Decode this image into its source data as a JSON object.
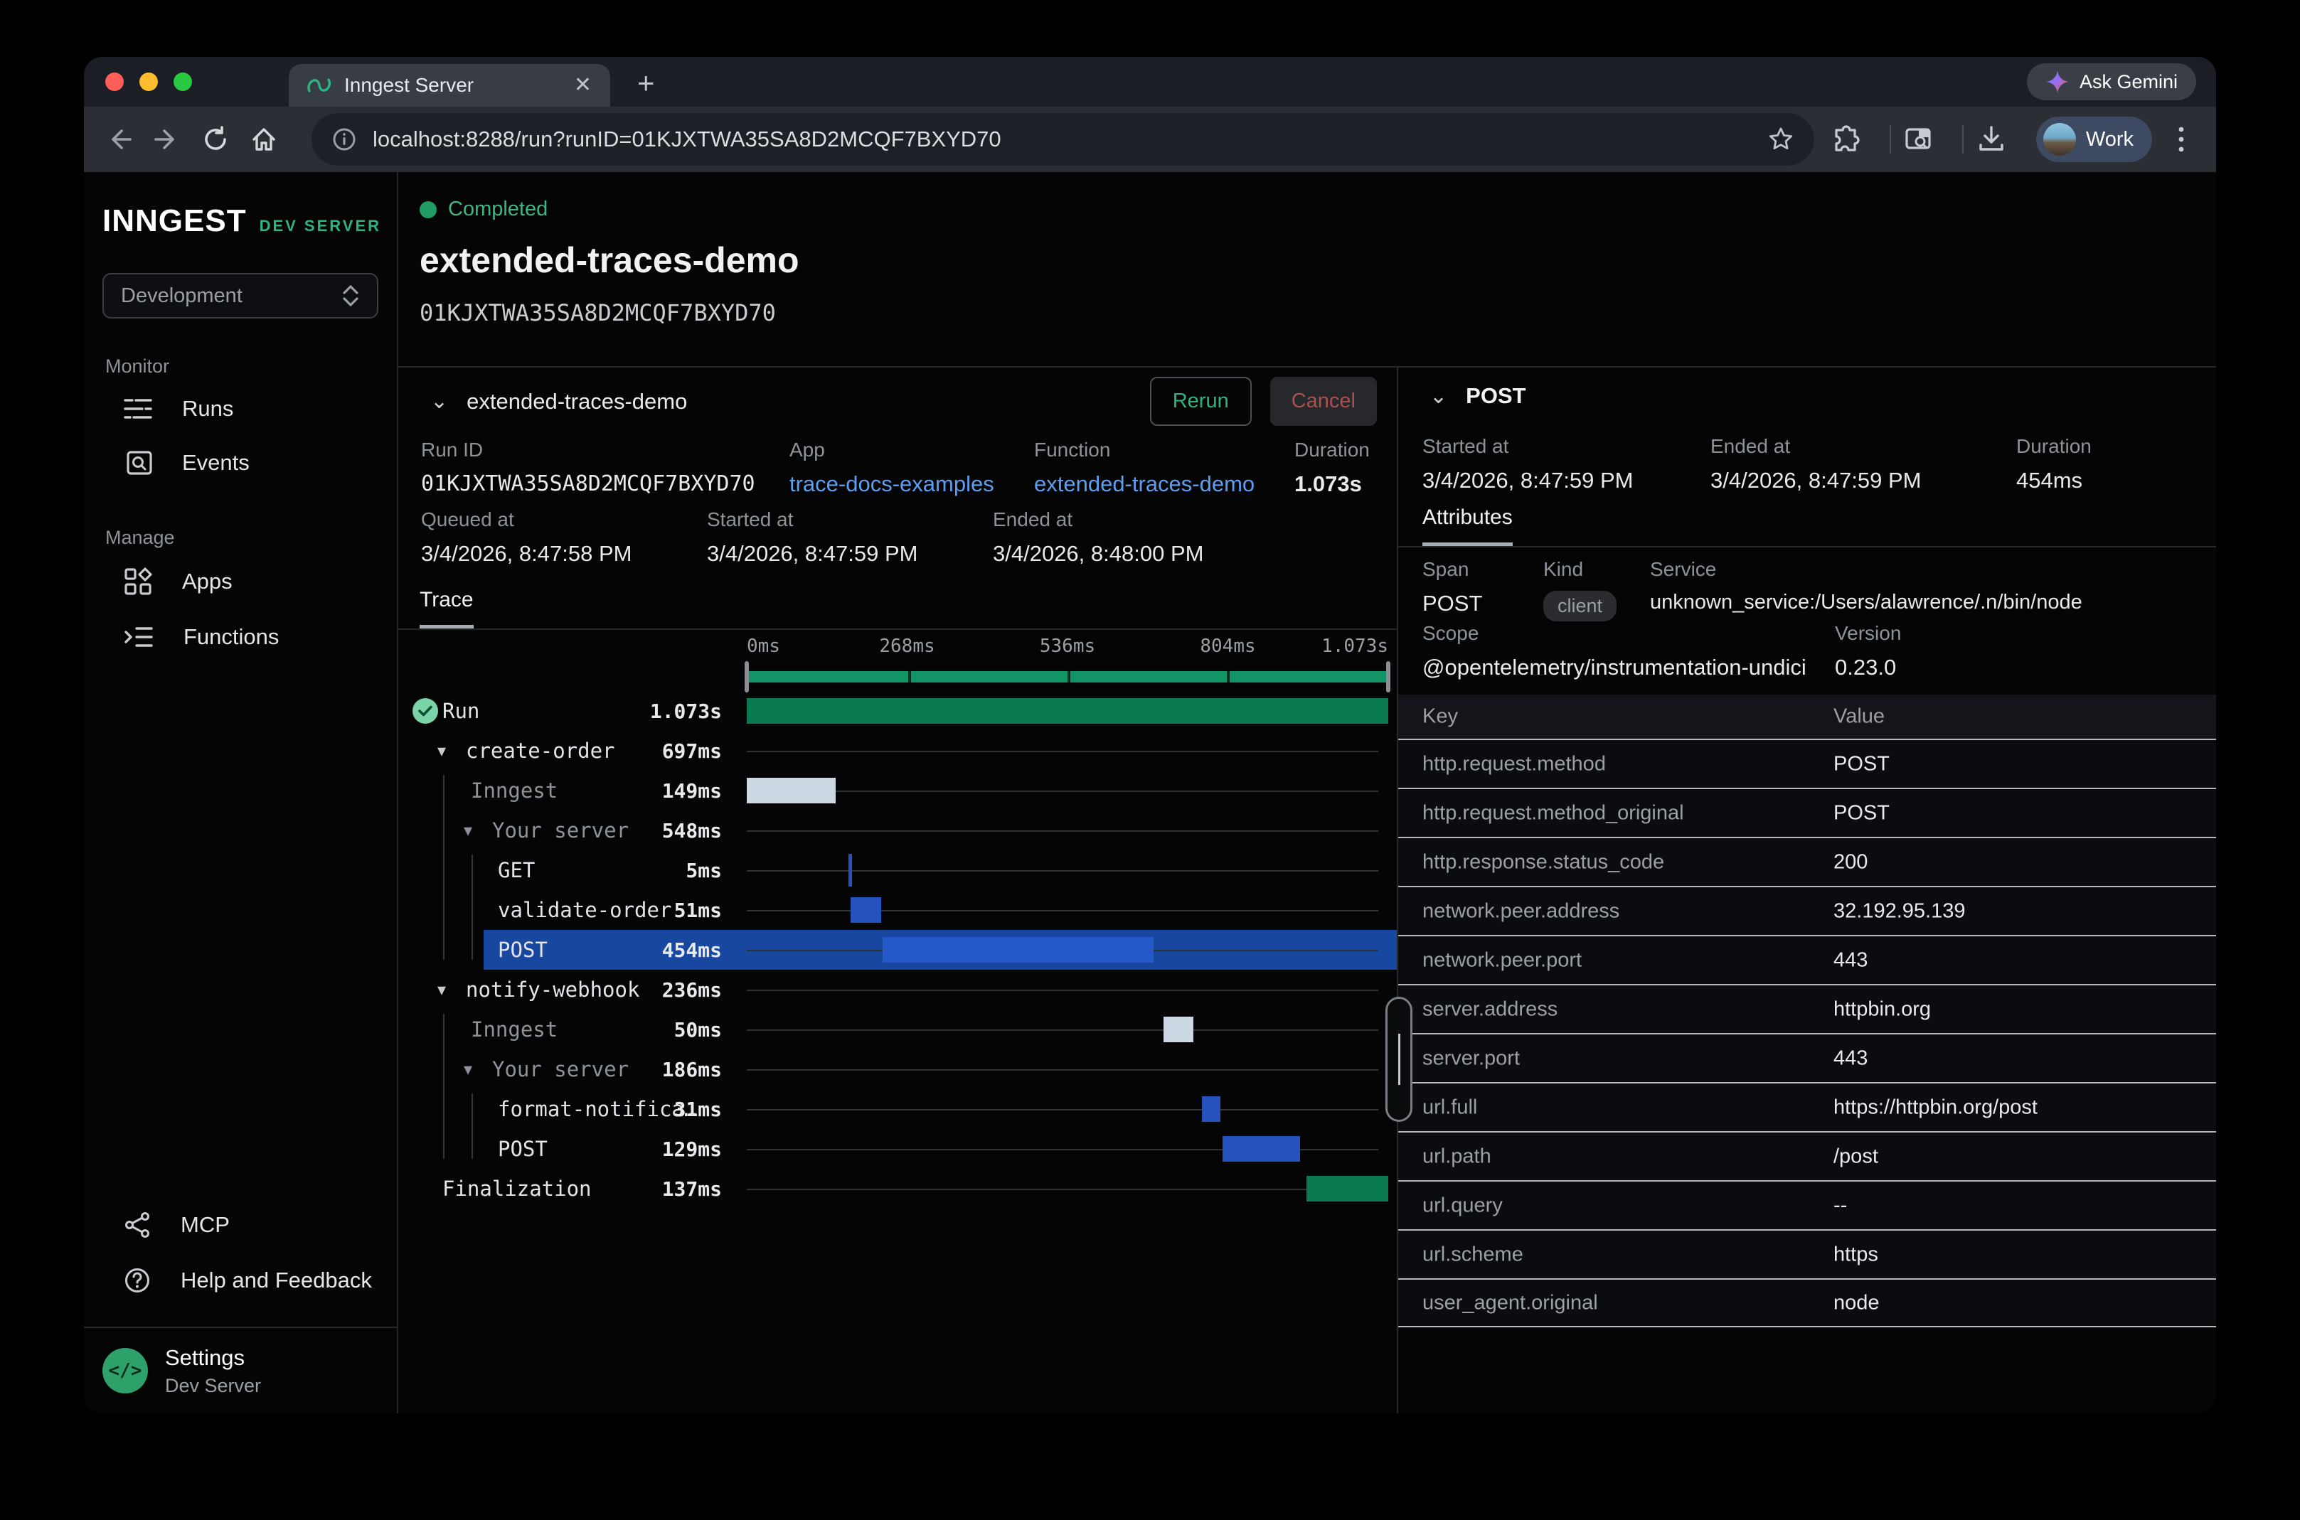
{
  "browser": {
    "tab_title": "Inngest Server",
    "url": "localhost:8288/run?runID=01KJXTWA35SA8D2MCQF7BXYD70",
    "ask_gemini_label": "Ask Gemini",
    "profile_label": "Work"
  },
  "sidebar": {
    "logo": "INNGEST",
    "logo_badge": "DEV SERVER",
    "env_select_value": "Development",
    "sections": [
      {
        "label": "Monitor",
        "items": [
          {
            "icon": "runs-icon",
            "label": "Runs"
          },
          {
            "icon": "events-icon",
            "label": "Events"
          }
        ]
      },
      {
        "label": "Manage",
        "items": [
          {
            "icon": "apps-icon",
            "label": "Apps"
          },
          {
            "icon": "functions-icon",
            "label": "Functions"
          }
        ]
      }
    ],
    "footer_items": [
      {
        "icon": "mcp-icon",
        "label": "MCP"
      },
      {
        "icon": "help-icon",
        "label": "Help and Feedback"
      }
    ],
    "settings": {
      "title": "Settings",
      "subtitle": "Dev Server"
    }
  },
  "header": {
    "status": "Completed",
    "title": "extended-traces-demo",
    "run_id": "01KJXTWA35SA8D2MCQF7BXYD70"
  },
  "run_card": {
    "name": "extended-traces-demo",
    "rerun_label": "Rerun",
    "cancel_label": "Cancel",
    "fields_row1": [
      {
        "label": "Run ID",
        "value": "01KJXTWA35SA8D2MCQF7BXYD70",
        "style": "mono"
      },
      {
        "label": "App",
        "value": "trace-docs-examples",
        "style": "link"
      },
      {
        "label": "Function",
        "value": "extended-traces-demo",
        "style": "link"
      },
      {
        "label": "Duration",
        "value": "1.073s",
        "style": "bold"
      }
    ],
    "fields_row2": [
      {
        "label": "Queued at",
        "value": "3/4/2026, 8:47:58 PM"
      },
      {
        "label": "Started at",
        "value": "3/4/2026, 8:47:59 PM"
      },
      {
        "label": "Ended at",
        "value": "3/4/2026, 8:48:00 PM"
      }
    ],
    "tab": "Trace"
  },
  "trace": {
    "total_ms": 1073,
    "axis": [
      "0ms",
      "268ms",
      "536ms",
      "804ms",
      "1.073s"
    ],
    "rows": [
      {
        "name": "Run",
        "duration": "1.073s",
        "indent": 62,
        "icon": "check-circle",
        "chevron": false,
        "grey": false,
        "selected": false,
        "bar": {
          "start": 0,
          "end": 1073,
          "color": "green"
        }
      },
      {
        "name": "create-order",
        "duration": "697ms",
        "indent": 95,
        "chevron": true,
        "grey": false,
        "selected": false,
        "bar": null
      },
      {
        "name": "Inngest",
        "duration": "149ms",
        "indent": 102,
        "chevron": false,
        "grey": true,
        "selected": false,
        "bar": {
          "start": 0,
          "end": 149,
          "color": "light"
        }
      },
      {
        "name": "Your server",
        "duration": "548ms",
        "indent": 132,
        "chevron": true,
        "grey": true,
        "selected": false,
        "bar": null
      },
      {
        "name": "GET",
        "duration": "5ms",
        "indent": 140,
        "chevron": false,
        "grey": false,
        "selected": false,
        "tick": true,
        "bar": {
          "start": 170,
          "end": 176,
          "color": "blue"
        }
      },
      {
        "name": "validate-order",
        "duration": "51ms",
        "indent": 140,
        "chevron": false,
        "grey": false,
        "selected": false,
        "bar": {
          "start": 174,
          "end": 225,
          "color": "blue"
        }
      },
      {
        "name": "POST",
        "duration": "454ms",
        "indent": 140,
        "chevron": false,
        "grey": false,
        "selected": true,
        "bar": {
          "start": 227,
          "end": 681,
          "color": "blue-bright"
        }
      },
      {
        "name": "notify-webhook",
        "duration": "236ms",
        "indent": 95,
        "chevron": true,
        "grey": false,
        "selected": false,
        "bar": null
      },
      {
        "name": "Inngest",
        "duration": "50ms",
        "indent": 102,
        "chevron": false,
        "grey": true,
        "selected": false,
        "bar": {
          "start": 697,
          "end": 747,
          "color": "light"
        }
      },
      {
        "name": "Your server",
        "duration": "186ms",
        "indent": 132,
        "chevron": true,
        "grey": true,
        "selected": false,
        "bar": null
      },
      {
        "name": "format-notifica…",
        "duration": "31ms",
        "indent": 140,
        "chevron": false,
        "grey": false,
        "selected": false,
        "bar": {
          "start": 761,
          "end": 792,
          "color": "blue"
        }
      },
      {
        "name": "POST",
        "duration": "129ms",
        "indent": 140,
        "chevron": false,
        "grey": false,
        "selected": false,
        "bar": {
          "start": 796,
          "end": 925,
          "color": "blue"
        }
      },
      {
        "name": "Finalization",
        "duration": "137ms",
        "indent": 62,
        "chevron": false,
        "grey": false,
        "selected": false,
        "bar": {
          "start": 936,
          "end": 1073,
          "color": "green"
        }
      }
    ]
  },
  "detail": {
    "title": "POST",
    "meta": [
      {
        "label": "Started at",
        "value": "3/4/2026, 8:47:59 PM"
      },
      {
        "label": "Ended at",
        "value": "3/4/2026, 8:47:59 PM"
      },
      {
        "label": "Duration",
        "value": "454ms"
      }
    ],
    "tab": "Attributes",
    "span": {
      "span_label": "Span",
      "span_value": "POST",
      "kind_label": "Kind",
      "kind_value": "client",
      "service_label": "Service",
      "service_value": "unknown_service:/Users/alawrence/.n/bin/node",
      "scope_label": "Scope",
      "scope_value": "@opentelemetry/instrumentation-undici",
      "version_label": "Version",
      "version_value": "0.23.0"
    },
    "table": {
      "key_header": "Key",
      "value_header": "Value",
      "rows": [
        [
          "http.request.method",
          "POST"
        ],
        [
          "http.request.method_original",
          "POST"
        ],
        [
          "http.response.status_code",
          "200"
        ],
        [
          "network.peer.address",
          "32.192.95.139"
        ],
        [
          "network.peer.port",
          "443"
        ],
        [
          "server.address",
          "httpbin.org"
        ],
        [
          "server.port",
          "443"
        ],
        [
          "url.full",
          "https://httpbin.org/post"
        ],
        [
          "url.path",
          "/post"
        ],
        [
          "url.query",
          "--"
        ],
        [
          "url.scheme",
          "https"
        ],
        [
          "user_agent.original",
          "node"
        ]
      ]
    }
  },
  "colors": {
    "accent_green": "#2fb481",
    "status_green": "#1f9d63",
    "link_blue": "#5c9ff2",
    "bar_green": "#0c7a50",
    "bar_blue": "#2453be",
    "bar_blue_bright": "#2458c8",
    "bar_light": "#cbd7e3",
    "selected_row": "#17479e",
    "minimap_green": "#139467"
  }
}
